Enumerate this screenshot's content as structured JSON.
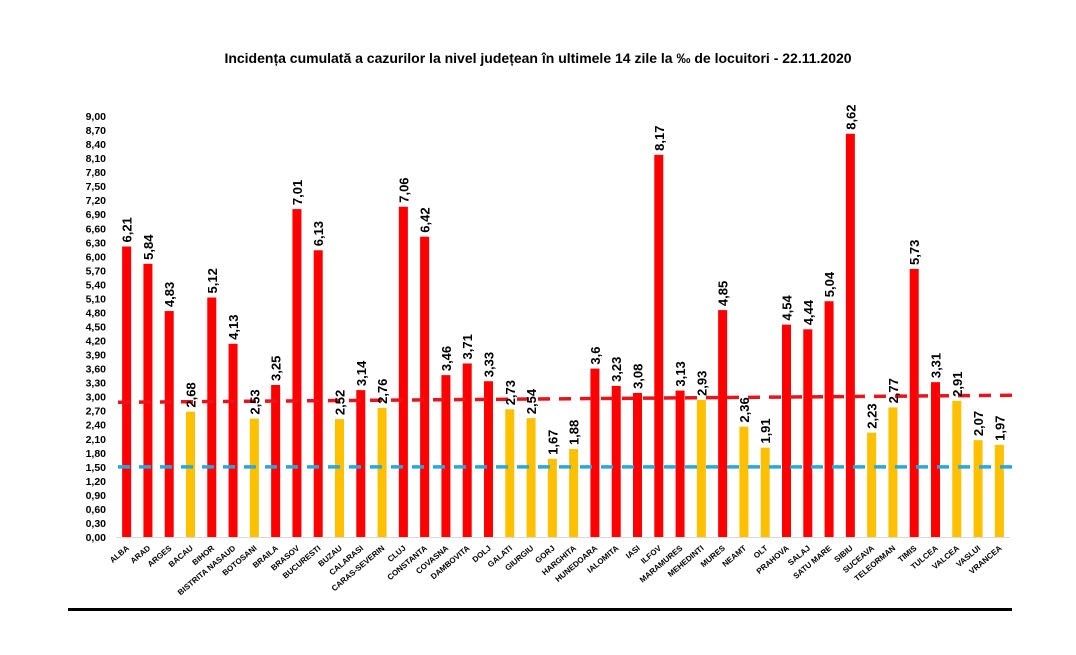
{
  "chart_data": {
    "type": "bar",
    "title": "Incidența cumulată a cazurilor la nivel județean în ultimele 14 zile la ‰ de locuitori - 22.11.2020",
    "xlabel": "",
    "ylabel": "",
    "ylim": [
      0,
      9
    ],
    "ytick_step": 0.3,
    "ytick_labels": [
      "0,00",
      "0,30",
      "0,60",
      "0,90",
      "1,20",
      "1,50",
      "1,80",
      "2,10",
      "2,40",
      "2,70",
      "3,00",
      "3,30",
      "3,60",
      "3,90",
      "4,20",
      "4,50",
      "4,80",
      "5,10",
      "5,40",
      "5,70",
      "6,00",
      "6,30",
      "6,60",
      "6,90",
      "7,20",
      "7,50",
      "7,80",
      "8,10",
      "8,40",
      "8,70",
      "9,00"
    ],
    "grid": false,
    "legend": "none",
    "categories": [
      "ALBA",
      "ARAD",
      "ARGES",
      "BACAU",
      "BIHOR",
      "BISTRITA NASAUD",
      "BOTOSANI",
      "BRAILA",
      "BRASOV",
      "BUCURESTI",
      "BUZAU",
      "CALARASI",
      "CARAS-SEVERIN",
      "CLUJ",
      "CONSTANTA",
      "COVASNA",
      "DAMBOVITA",
      "DOLJ",
      "GALATI",
      "GIURGIU",
      "GORJ",
      "HARGHITA",
      "HUNEDOARA",
      "IALOMITA",
      "IASI",
      "ILFOV",
      "MARAMURES",
      "MEHEDINTI",
      "MURES",
      "NEAMT",
      "OLT",
      "PRAHOVA",
      "SALAJ",
      "SATU MARE",
      "SIBIU",
      "SUCEAVA",
      "TELEORMAN",
      "TIMIS",
      "TULCEA",
      "VALCEA",
      "VASLUI",
      "VRANCEA"
    ],
    "values": [
      6.21,
      5.84,
      4.83,
      2.68,
      5.12,
      4.13,
      2.53,
      3.25,
      7.01,
      6.13,
      2.52,
      3.14,
      2.76,
      7.06,
      6.42,
      3.46,
      3.71,
      3.33,
      2.73,
      2.54,
      1.67,
      1.88,
      3.6,
      3.23,
      3.08,
      8.17,
      3.13,
      2.93,
      4.85,
      2.36,
      1.91,
      4.54,
      4.44,
      5.04,
      8.62,
      2.23,
      2.77,
      5.73,
      3.31,
      2.91,
      2.07,
      1.97
    ],
    "value_labels": [
      "6,21",
      "5,84",
      "4,83",
      "2,68",
      "5,12",
      "4,13",
      "2,53",
      "3,25",
      "7,01",
      "6,13",
      "2,52",
      "3,14",
      "2,76",
      "7,06",
      "6,42",
      "3,46",
      "3,71",
      "3,33",
      "2,73",
      "2,54",
      "1,67",
      "1,88",
      "3,6",
      "3,23",
      "3,08",
      "8,17",
      "3,13",
      "2,93",
      "4,85",
      "2,36",
      "1,91",
      "4,54",
      "4,44",
      "5,04",
      "8,62",
      "2,23",
      "2,77",
      "5,73",
      "3,31",
      "2,91",
      "2,07",
      "1,97"
    ],
    "colors": {
      "above_threshold": "#ff0000",
      "below_threshold": "#ffc000"
    },
    "threshold_value": 3.0,
    "reference_lines": [
      {
        "name": "red-dashed-reference",
        "color": "#e8141c",
        "y_start": 2.88,
        "y_end": 3.03,
        "style": "dashed"
      },
      {
        "name": "blue-dashed-reference",
        "color": "#29a8e0",
        "y_start": 1.5,
        "y_end": 1.5,
        "style": "dashed"
      }
    ]
  }
}
